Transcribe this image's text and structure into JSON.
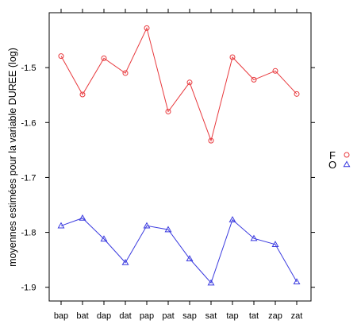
{
  "chart_data": {
    "type": "line",
    "title": "",
    "xlabel": "",
    "ylabel": "moyennes estimées pour la variable DUREE (log)",
    "categories": [
      "bap",
      "bat",
      "dap",
      "dat",
      "pap",
      "pat",
      "sap",
      "sat",
      "tap",
      "tat",
      "zap",
      "zat"
    ],
    "yticks": [
      "-1.9",
      "-1.8",
      "-1.7",
      "-1.6",
      "-1.5"
    ],
    "ylim": [
      -1.925,
      -1.4
    ],
    "grid": false,
    "legend_position": "right",
    "series": [
      {
        "name": "F",
        "color": "#e8393d",
        "marker": "circle",
        "values": [
          -1.479,
          -1.549,
          -1.483,
          -1.51,
          -1.428,
          -1.58,
          -1.527,
          -1.633,
          -1.481,
          -1.522,
          -1.506,
          -1.548
        ]
      },
      {
        "name": "O",
        "color": "#3a3adf",
        "marker": "triangle",
        "values": [
          -1.788,
          -1.774,
          -1.812,
          -1.855,
          -1.788,
          -1.795,
          -1.848,
          -1.892,
          -1.777,
          -1.811,
          -1.822,
          -1.89
        ]
      }
    ]
  }
}
